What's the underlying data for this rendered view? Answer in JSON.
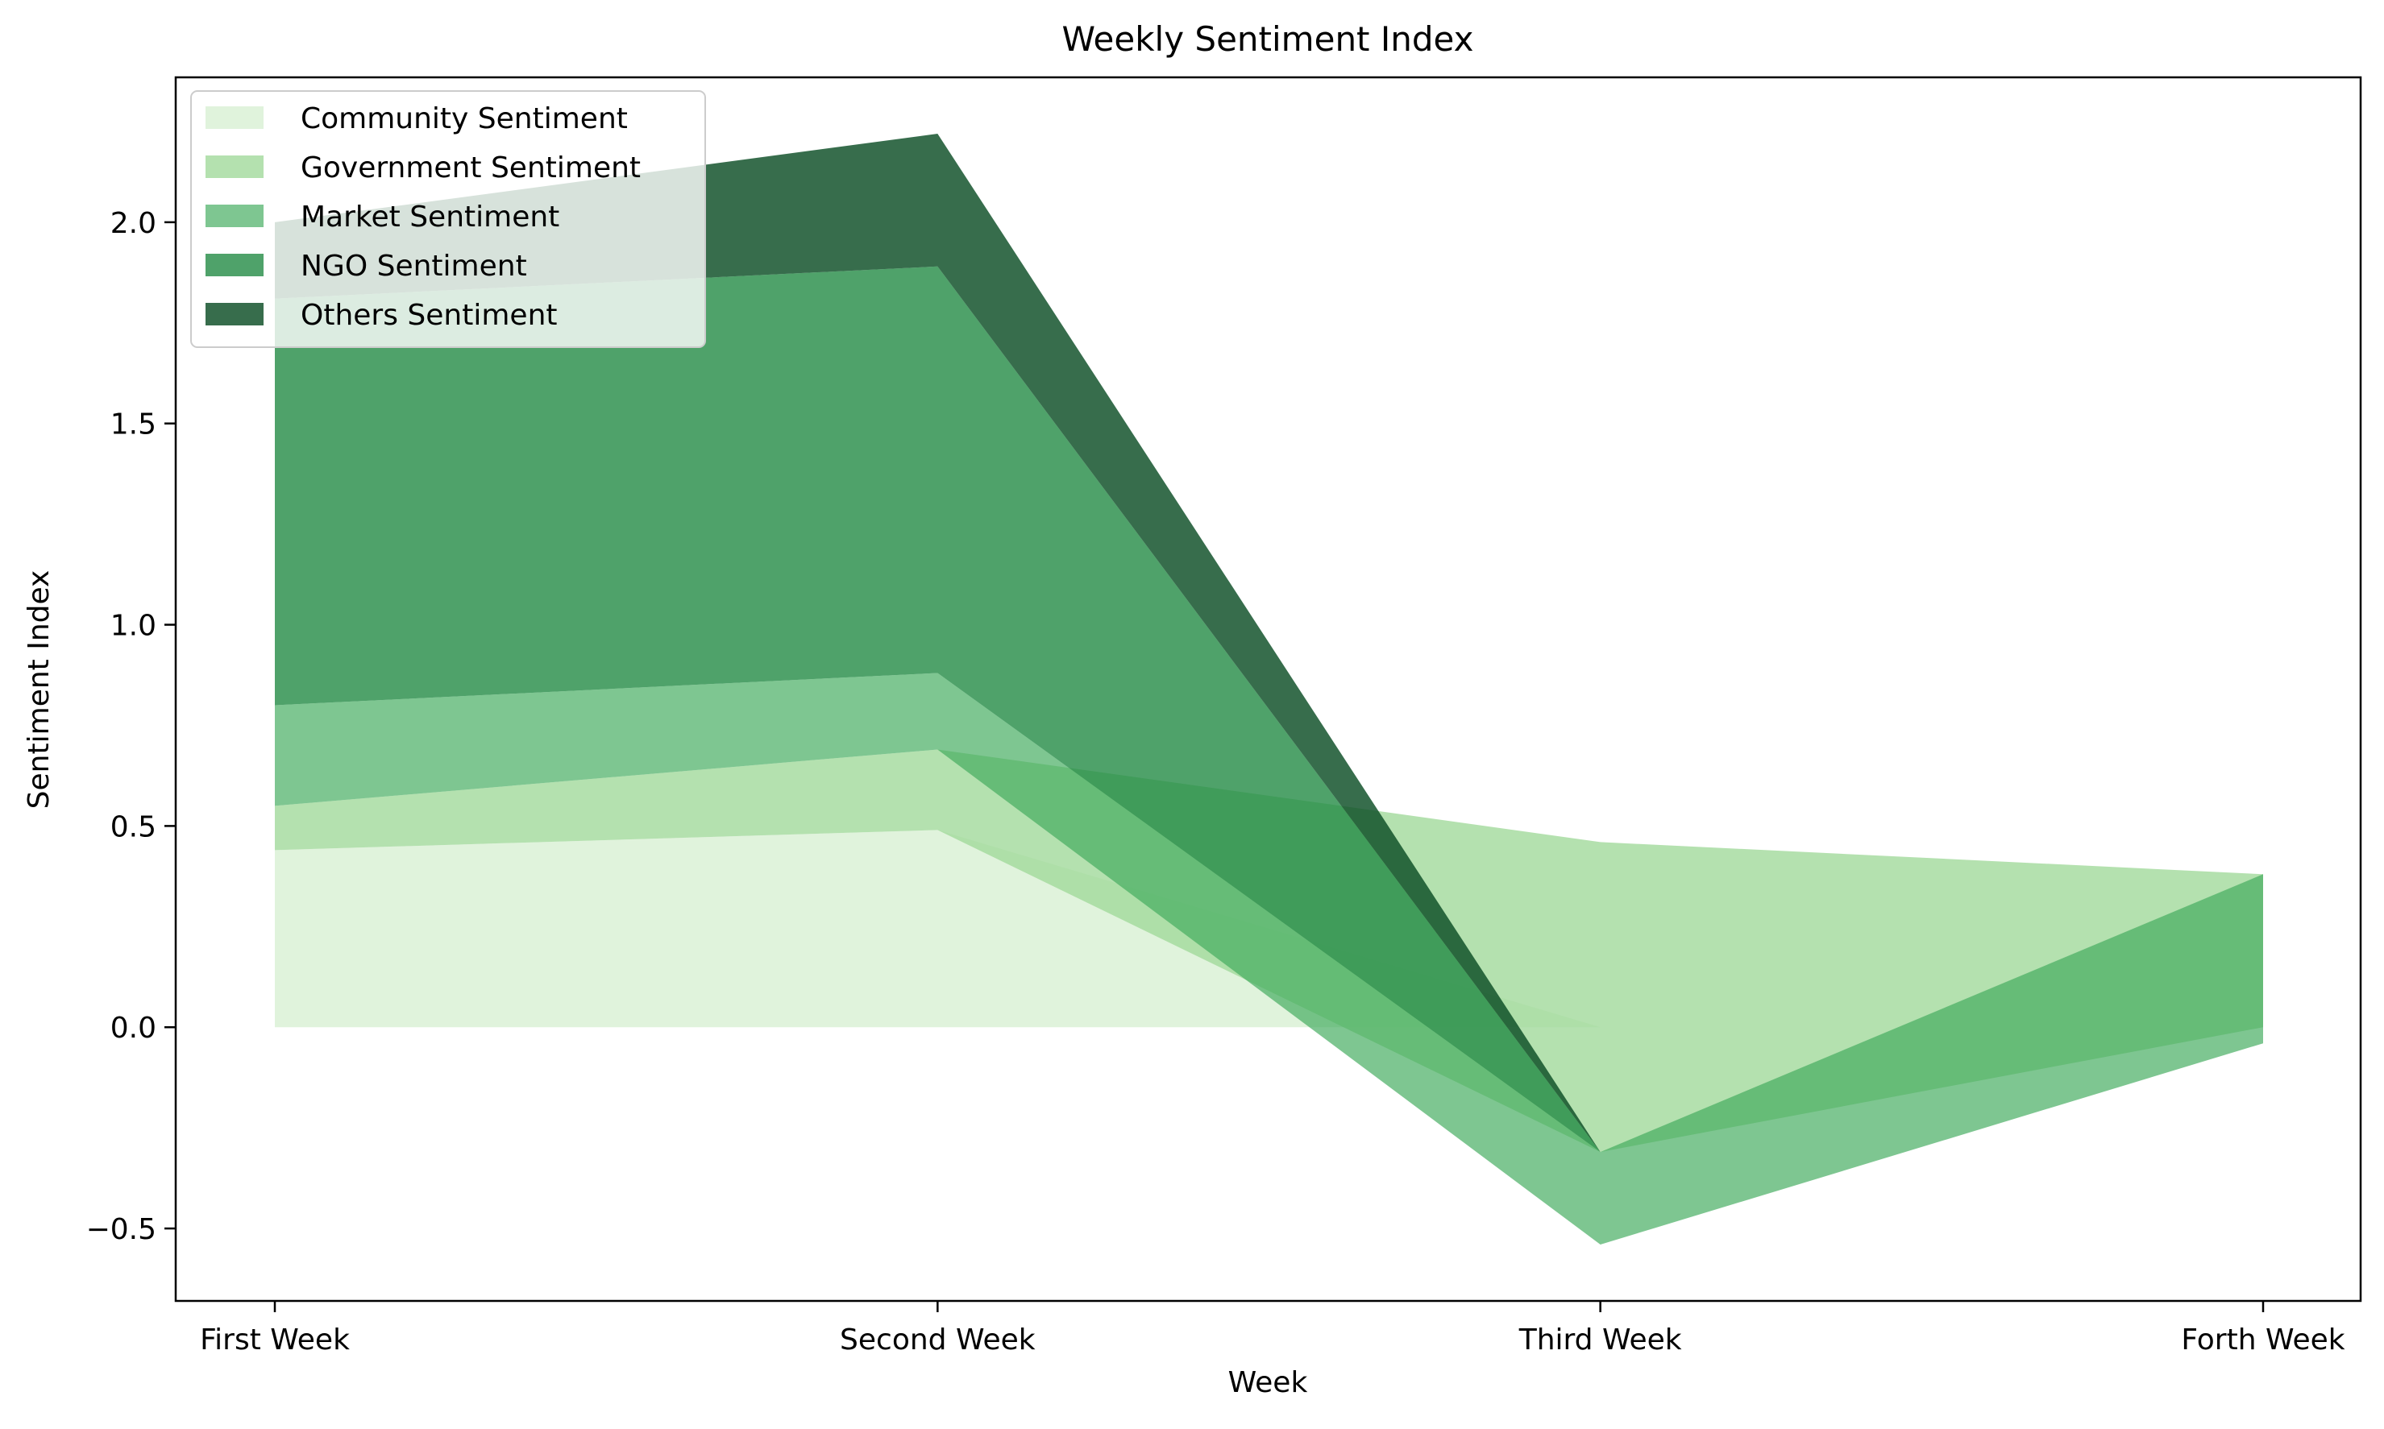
{
  "chart_data": {
    "type": "area",
    "title": "Weekly Sentiment Index",
    "xlabel": "Week",
    "ylabel": "Sentiment Index",
    "categories": [
      "First Week",
      "Second Week",
      "Third Week",
      "Forth Week"
    ],
    "ylim": [
      -0.68,
      2.36
    ],
    "yticks": [
      -0.5,
      0.0,
      0.5,
      1.0,
      1.5,
      2.0
    ],
    "ytick_labels": [
      "−0.5",
      "0.0",
      "0.5",
      "1.0",
      "1.5",
      "2.0"
    ],
    "grid": false,
    "legend_position": "upper-left",
    "series": [
      {
        "name": "Community Sentiment",
        "color": "#c7e9c0",
        "opacity": 0.55,
        "lower": [
          0.0,
          0.0,
          0.0,
          0.0
        ],
        "upper": [
          0.44,
          0.49,
          0.0,
          0.0
        ]
      },
      {
        "name": "Government Sentiment",
        "color": "#a1d99b",
        "opacity": 0.8,
        "lower": [
          0.44,
          0.49,
          -0.31,
          0.0
        ],
        "upper": [
          0.55,
          0.69,
          0.46,
          0.38
        ]
      },
      {
        "name": "Market Sentiment",
        "color": "#41ab5d",
        "opacity": 0.68,
        "lower": [
          0.55,
          0.69,
          -0.54,
          -0.04
        ],
        "upper": [
          0.8,
          0.88,
          -0.31,
          0.38
        ]
      },
      {
        "name": "NGO Sentiment",
        "color": "#238b45",
        "opacity": 0.8,
        "lower": [
          0.8,
          0.88,
          -0.31,
          0.0
        ],
        "upper": [
          1.81,
          1.89,
          -0.31,
          0.0
        ]
      },
      {
        "name": "Others Sentiment",
        "color": "#0b4d25",
        "opacity": 0.82,
        "lower": [
          1.81,
          1.89,
          -0.31,
          0.0
        ],
        "upper": [
          2.0,
          2.22,
          -0.31,
          0.0
        ]
      }
    ]
  }
}
